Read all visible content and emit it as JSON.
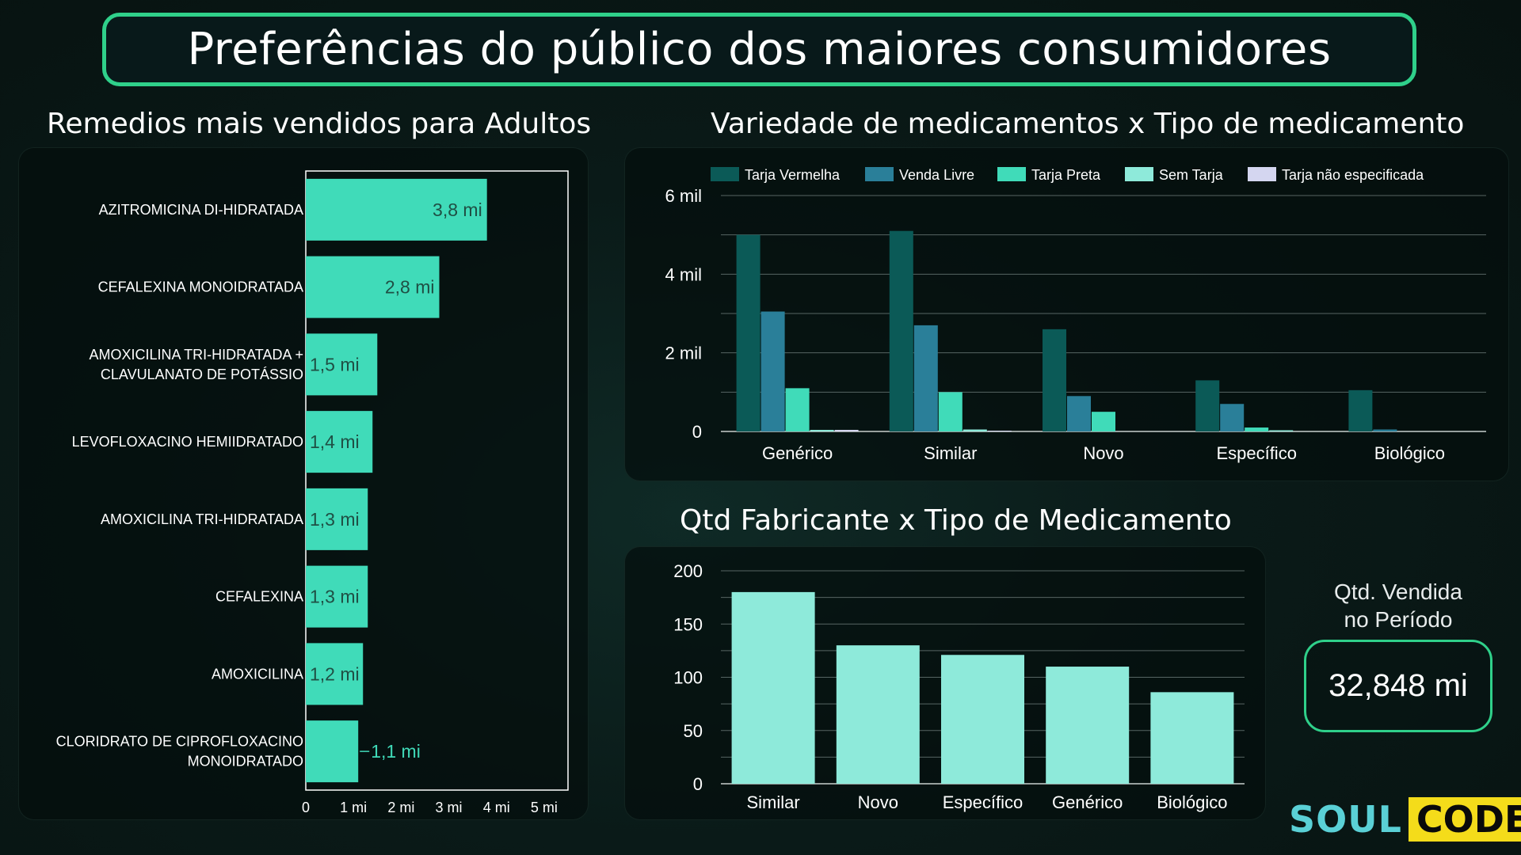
{
  "main_title": "Preferências do público dos maiores consumidores",
  "kpi": {
    "label_line1": "Qtd. Vendida",
    "label_line2": "no Período",
    "value": "32,848 mi"
  },
  "logo": {
    "part1": "SOUL",
    "part2": "CODE"
  },
  "colors": {
    "accent": "#2fd08a",
    "bar": "#40dbb9",
    "bar2": "#8eeada"
  },
  "chart_data": [
    {
      "type": "bar",
      "orientation": "horizontal",
      "title": "Remedios mais vendidos para Adultos",
      "categories": [
        [
          "AZITROMICINA DI-HIDRATADA"
        ],
        [
          "CEFALEXINA MONOIDRATADA"
        ],
        [
          "AMOXICILINA TRI-HIDRATADA +",
          "CLAVULANATO DE POTÁSSIO"
        ],
        [
          "LEVOFLOXACINO HEMIIDRATADO"
        ],
        [
          "AMOXICILINA TRI-HIDRATADA"
        ],
        [
          "CEFALEXINA"
        ],
        [
          "AMOXICILINA"
        ],
        [
          "CLORIDRATO DE CIPROFLOXACINO",
          "MONOIDRATADO"
        ]
      ],
      "values": [
        3.8,
        2.8,
        1.5,
        1.4,
        1.3,
        1.3,
        1.2,
        1.1
      ],
      "data_labels": [
        "3,8 mi",
        "2,8 mi",
        "1,5 mi",
        "1,4 mi",
        "1,3 mi",
        "1,3 mi",
        "1,2 mi",
        "1,1 mi"
      ],
      "xlim": [
        0,
        5.5
      ],
      "x_ticks": [
        0,
        1,
        2,
        3,
        4,
        5
      ],
      "x_tick_labels": [
        "0",
        "1 mi",
        "2 mi",
        "3 mi",
        "4 mi",
        "5 mi"
      ]
    },
    {
      "type": "bar",
      "orientation": "vertical",
      "title": "Variedade de medicamentos x Tipo de medicamento",
      "categories": [
        "Genérico",
        "Similar",
        "Novo",
        "Específico",
        "Biológico"
      ],
      "series": [
        {
          "name": "Tarja Vermelha",
          "color": "#0b5a57",
          "values": [
            5000,
            5100,
            2600,
            1300,
            1050
          ]
        },
        {
          "name": "Venda Livre",
          "color": "#2a7f99",
          "values": [
            3050,
            2700,
            900,
            700,
            50
          ]
        },
        {
          "name": "Tarja Preta",
          "color": "#40dbb9",
          "values": [
            1100,
            1000,
            500,
            100,
            0
          ]
        },
        {
          "name": "Sem Tarja",
          "color": "#8eeada",
          "values": [
            40,
            50,
            0,
            30,
            0
          ]
        },
        {
          "name": "Tarja não especificada",
          "color": "#d4d6f0",
          "values": [
            40,
            20,
            0,
            0,
            0
          ]
        }
      ],
      "ylim": [
        0,
        6000
      ],
      "y_ticks": [
        0,
        2000,
        4000,
        6000
      ],
      "y_tick_labels": [
        "0",
        "2 mil",
        "4 mil",
        "6 mil"
      ],
      "legend": "top",
      "grid": true
    },
    {
      "type": "bar",
      "orientation": "vertical",
      "title": "Qtd Fabricante x Tipo de Medicamento",
      "categories": [
        "Similar",
        "Novo",
        "Específico",
        "Genérico",
        "Biológico"
      ],
      "values": [
        180,
        130,
        121,
        110,
        86
      ],
      "ylim": [
        0,
        200
      ],
      "y_ticks": [
        0,
        50,
        100,
        150,
        200
      ],
      "y_tick_labels": [
        "0",
        "50",
        "100",
        "150",
        "200"
      ],
      "grid": true
    }
  ]
}
